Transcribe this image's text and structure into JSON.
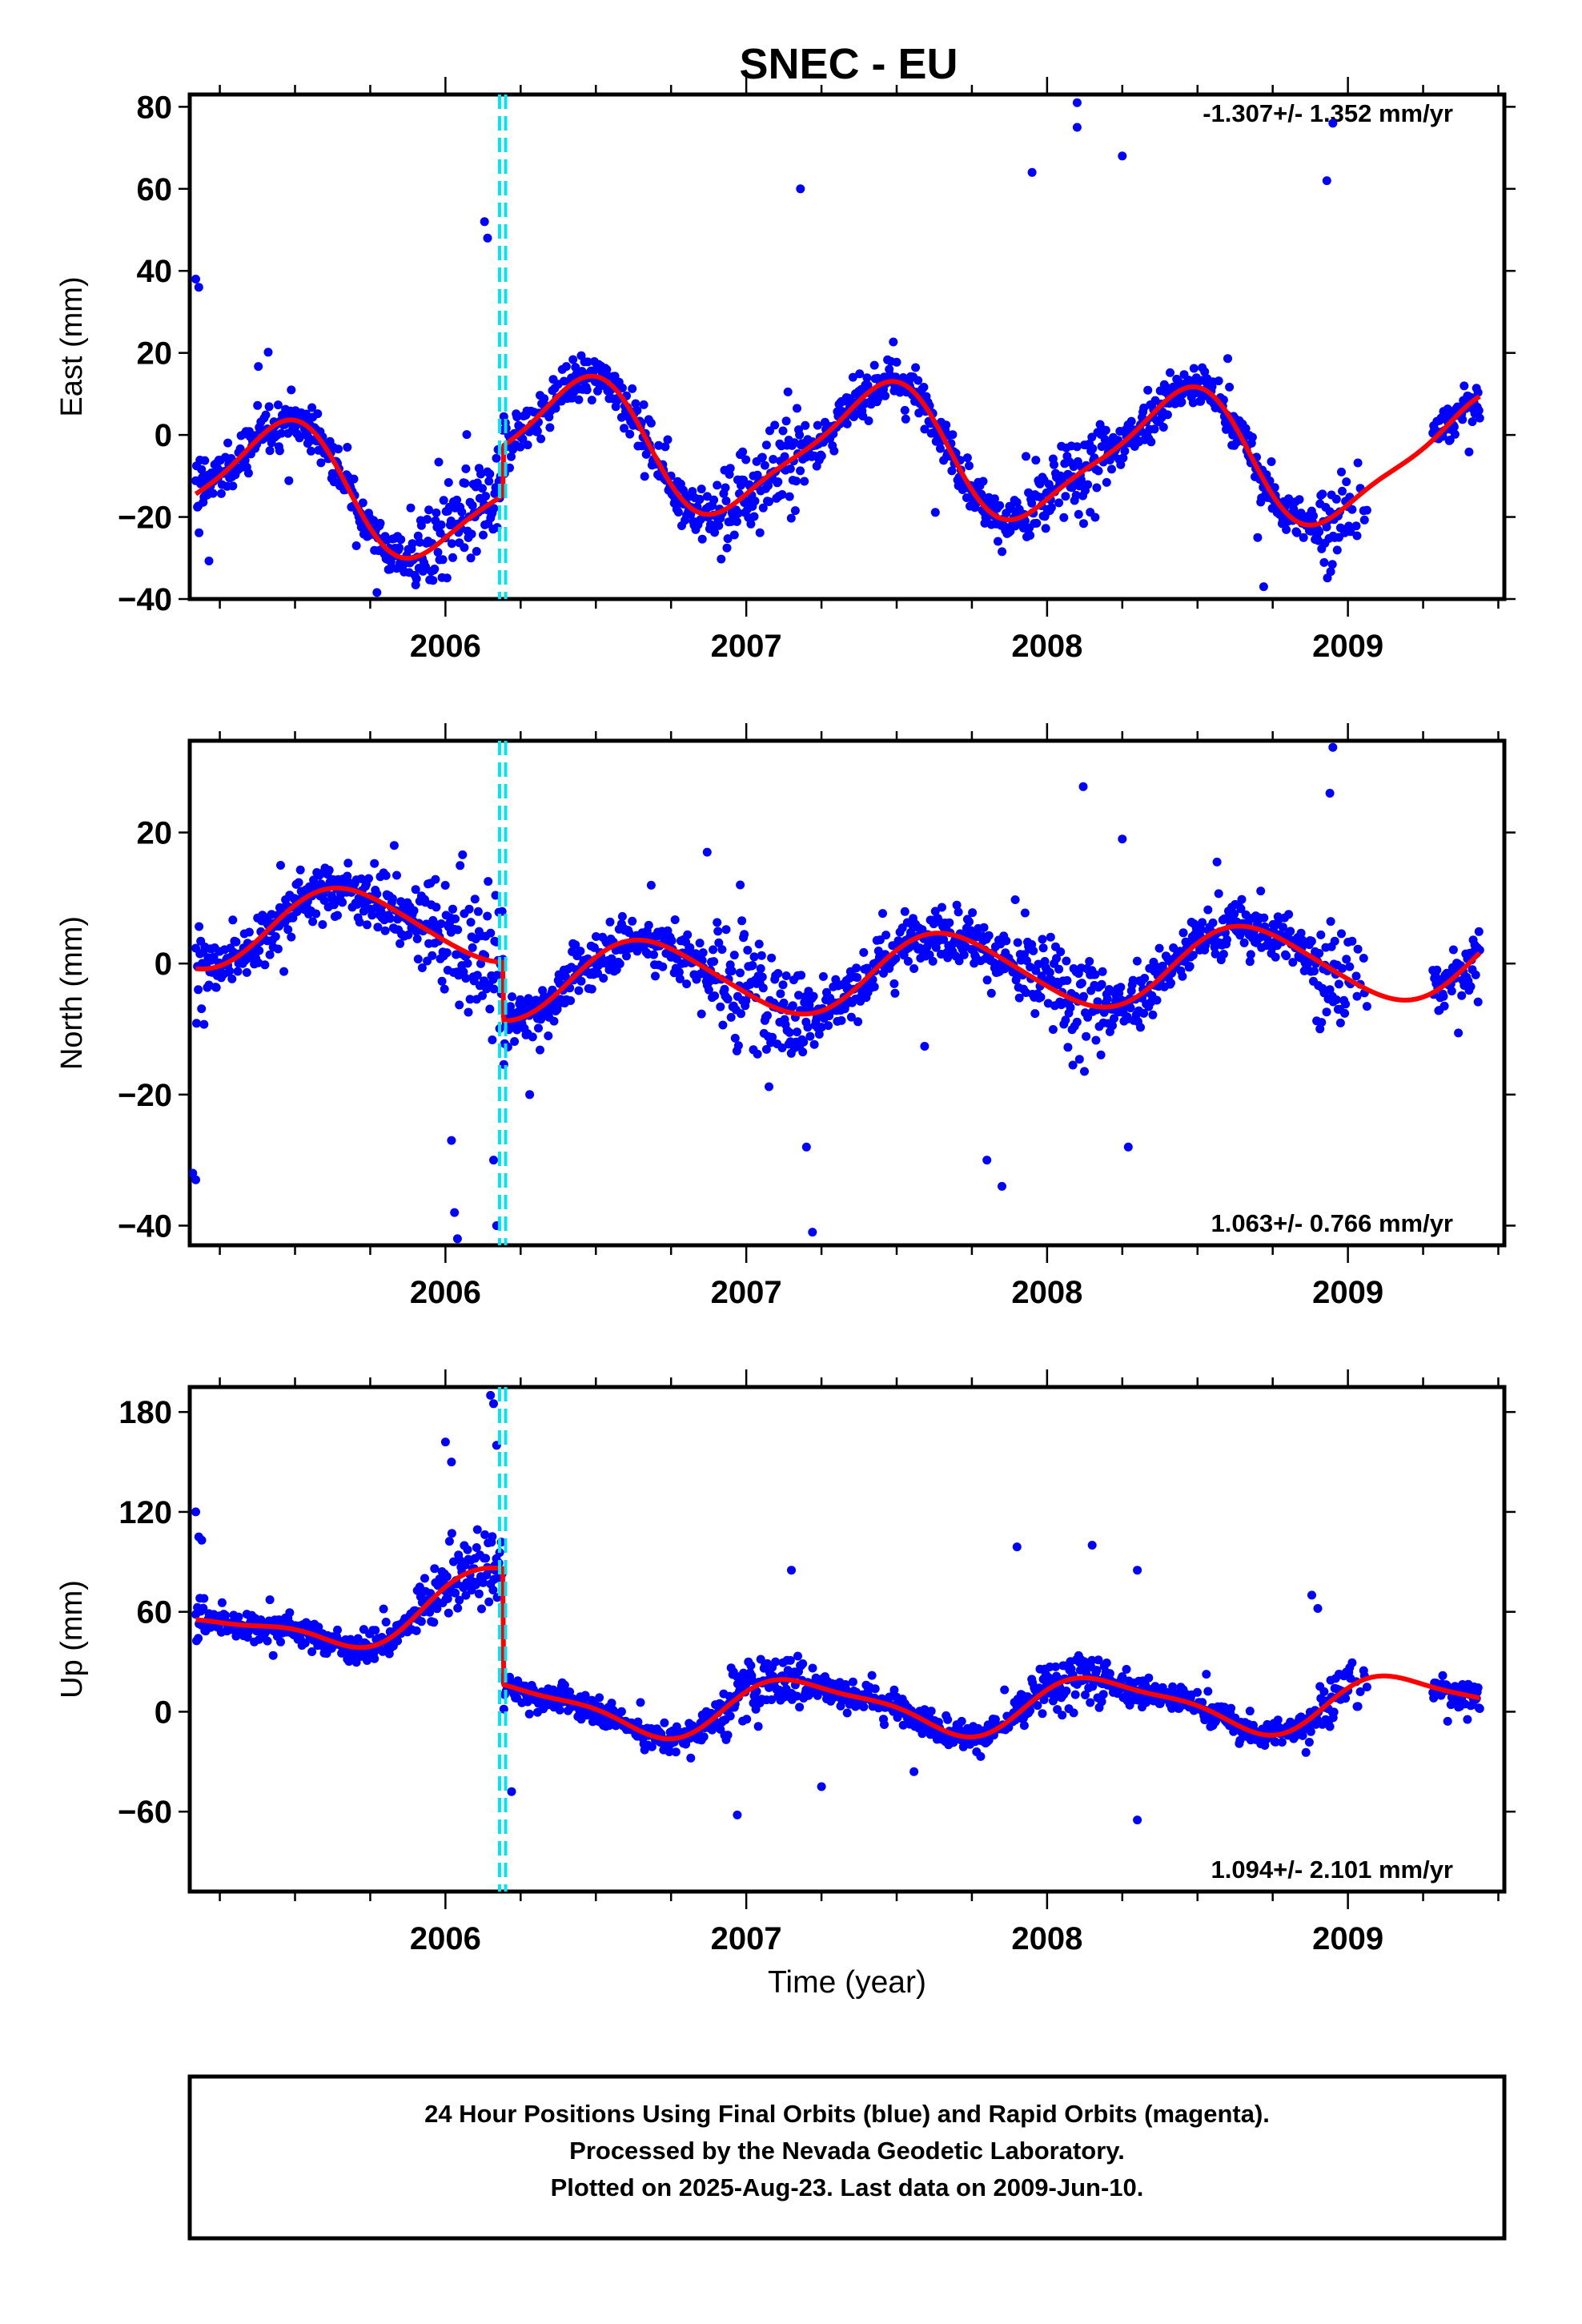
{
  "chart_data": {
    "type": "scatter",
    "title": "SNEC - EU",
    "xlabel": "Time (year)",
    "x_ticks": [
      2006,
      2007,
      2008,
      2009
    ],
    "x_range": [
      2005.15,
      2009.52
    ],
    "step_epochs": [
      2006.18,
      2006.2
    ],
    "colors": {
      "final_orbits": "#0000ff",
      "model": "#ff0000",
      "steps": "#00e5ee"
    },
    "panels": [
      {
        "id": "east",
        "ylabel": "East (mm)",
        "ylim": [
          -40,
          83
        ],
        "y_ticks": [
          80,
          60,
          40,
          20,
          0,
          -20,
          -40
        ],
        "rate": "-1.307+/- 1.352 mm/yr",
        "rate_position": "top-right",
        "model": {
          "offset": -3.4,
          "rate": -1.307,
          "annual_cos": -14.0,
          "annual_sin": 6.0,
          "semiannual_cos": 3.0,
          "semiannual_sin": 2.0,
          "ref_epoch": 2007.0,
          "step_epoch": 2006.19,
          "step_size": 12.0
        },
        "outliers": [
          [
            2005.17,
            38
          ],
          [
            2005.18,
            36
          ],
          [
            2006.13,
            52
          ],
          [
            2006.14,
            48
          ],
          [
            2007.18,
            60
          ],
          [
            2007.95,
            64
          ],
          [
            2008.1,
            81
          ],
          [
            2008.1,
            75
          ],
          [
            2008.25,
            68
          ],
          [
            2008.95,
            76
          ],
          [
            2008.93,
            62
          ],
          [
            2008.72,
            -37
          ],
          [
            2008.7,
            -25
          ]
        ],
        "noise": 4.5
      },
      {
        "id": "north",
        "ylabel": "North (mm)",
        "ylim": [
          -43,
          34
        ],
        "y_ticks": [
          20,
          0,
          -20,
          -40
        ],
        "rate": "1.063+/- 0.766 mm/yr",
        "rate_position": "bottom-right",
        "model": {
          "offset": -2.0,
          "rate": 1.063,
          "annual_cos": -3.0,
          "annual_sin": -5.0,
          "semiannual_cos": 0.5,
          "semiannual_sin": 0.3,
          "ref_epoch": 2007.0,
          "step_epoch": 2006.19,
          "step_size": -9.0
        },
        "outliers": [
          [
            2005.16,
            -32
          ],
          [
            2005.17,
            -33
          ],
          [
            2006.02,
            -27
          ],
          [
            2006.03,
            -38
          ],
          [
            2006.04,
            -42
          ],
          [
            2006.16,
            -30
          ],
          [
            2006.17,
            -40
          ],
          [
            2007.22,
            -41
          ],
          [
            2007.2,
            -28
          ],
          [
            2007.8,
            -30
          ],
          [
            2007.85,
            -34
          ],
          [
            2006.28,
            -20
          ],
          [
            2008.95,
            33
          ],
          [
            2008.94,
            26
          ],
          [
            2008.12,
            27
          ],
          [
            2008.25,
            19
          ],
          [
            2006.87,
            17
          ],
          [
            2006.98,
            12
          ],
          [
            2008.27,
            -28
          ]
        ],
        "noise": 3.5
      },
      {
        "id": "up",
        "ylabel": "Up (mm)",
        "ylim": [
          -108,
          195
        ],
        "y_ticks": [
          180,
          120,
          60,
          0,
          -60
        ],
        "rate": "1.094+/- 2.101 mm/yr",
        "rate_position": "bottom-right",
        "model": {
          "offset": 3.0,
          "rate": 1.094,
          "annual_cos": 5.0,
          "annual_sin": 15.0,
          "semiannual_cos": 4.0,
          "semiannual_sin": 2.0,
          "ref_epoch": 2007.0,
          "step_epoch": 2006.19,
          "step_size": -40.0,
          "pre_step_trend": 30.0
        },
        "outliers": [
          [
            2005.17,
            120
          ],
          [
            2005.18,
            105
          ],
          [
            2005.19,
            103
          ],
          [
            2006.15,
            190
          ],
          [
            2006.16,
            185
          ],
          [
            2006.17,
            160
          ],
          [
            2006.02,
            150
          ],
          [
            2006.0,
            162
          ],
          [
            2007.9,
            99
          ],
          [
            2008.15,
            100
          ],
          [
            2008.3,
            85
          ],
          [
            2008.3,
            -65
          ],
          [
            2006.97,
            -62
          ],
          [
            2007.15,
            85
          ],
          [
            2008.88,
            70
          ],
          [
            2008.9,
            62
          ],
          [
            2006.22,
            -48
          ],
          [
            2007.25,
            -45
          ]
        ],
        "noise": 7.0
      }
    ]
  },
  "footer": {
    "line1": "24 Hour Positions Using Final Orbits (blue) and Rapid Orbits (magenta).",
    "line2": "Processed by the Nevada Geodetic Laboratory.",
    "line3": "Plotted on 2025-Aug-23. Last data on 2009-Jun-10."
  }
}
